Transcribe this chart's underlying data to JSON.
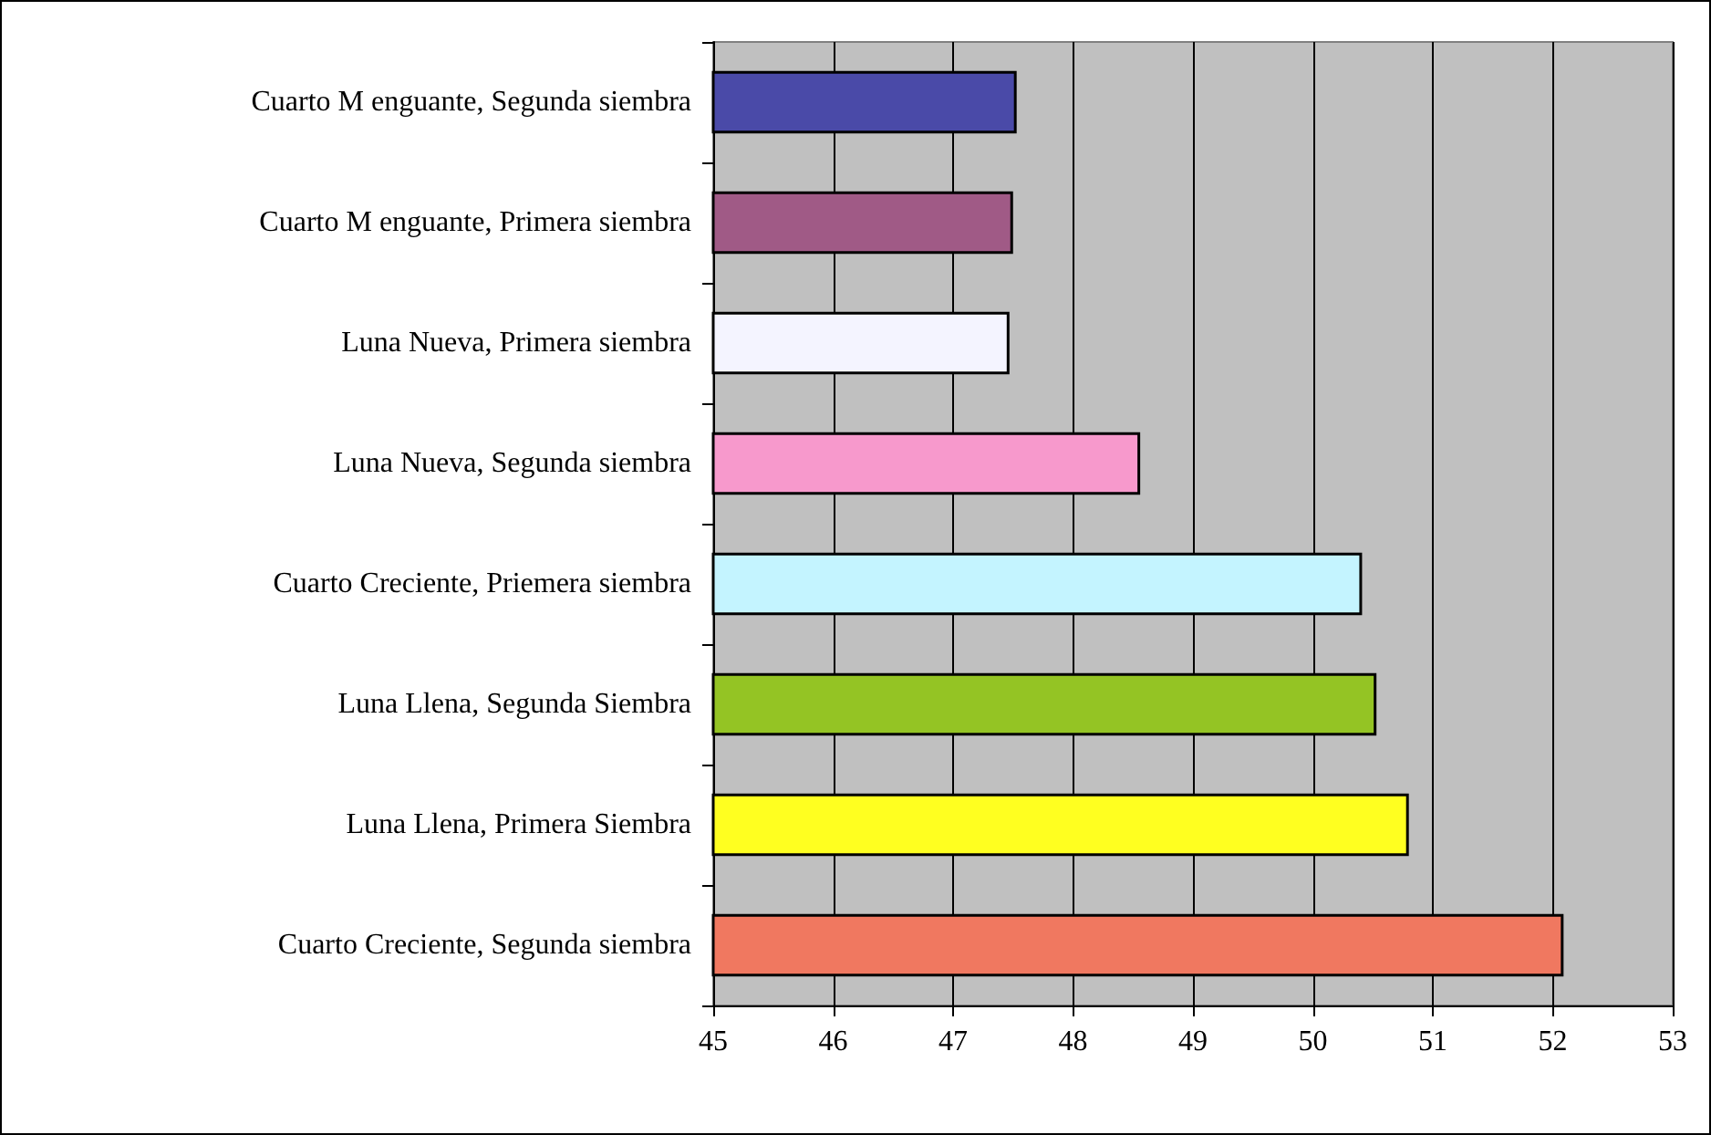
{
  "chart_data": {
    "type": "bar",
    "orientation": "horizontal",
    "categories": [
      "Cuarto M enguante, Segunda siembra",
      "Cuarto M enguante, Primera siembra",
      "Luna Nueva, Primera siembra",
      "Luna Nueva, Segunda siembra",
      "Cuarto Creciente, Priemera siembra",
      "Luna Llena, Segunda Siembra",
      "Luna Llena, Primera Siembra",
      "Cuarto Creciente, Segunda siembra"
    ],
    "values": [
      47.53,
      47.5,
      47.47,
      48.56,
      50.41,
      50.53,
      50.8,
      52.09
    ],
    "colors": [
      "#4a4aa8",
      "#a05a86",
      "#f4f4ff",
      "#f799cc",
      "#c4f4ff",
      "#94c424",
      "#ffff20",
      "#f07860"
    ],
    "xlim": [
      45,
      53
    ],
    "xticks": [
      45,
      46,
      47,
      48,
      49,
      50,
      51,
      52,
      53
    ],
    "grid": "x"
  }
}
